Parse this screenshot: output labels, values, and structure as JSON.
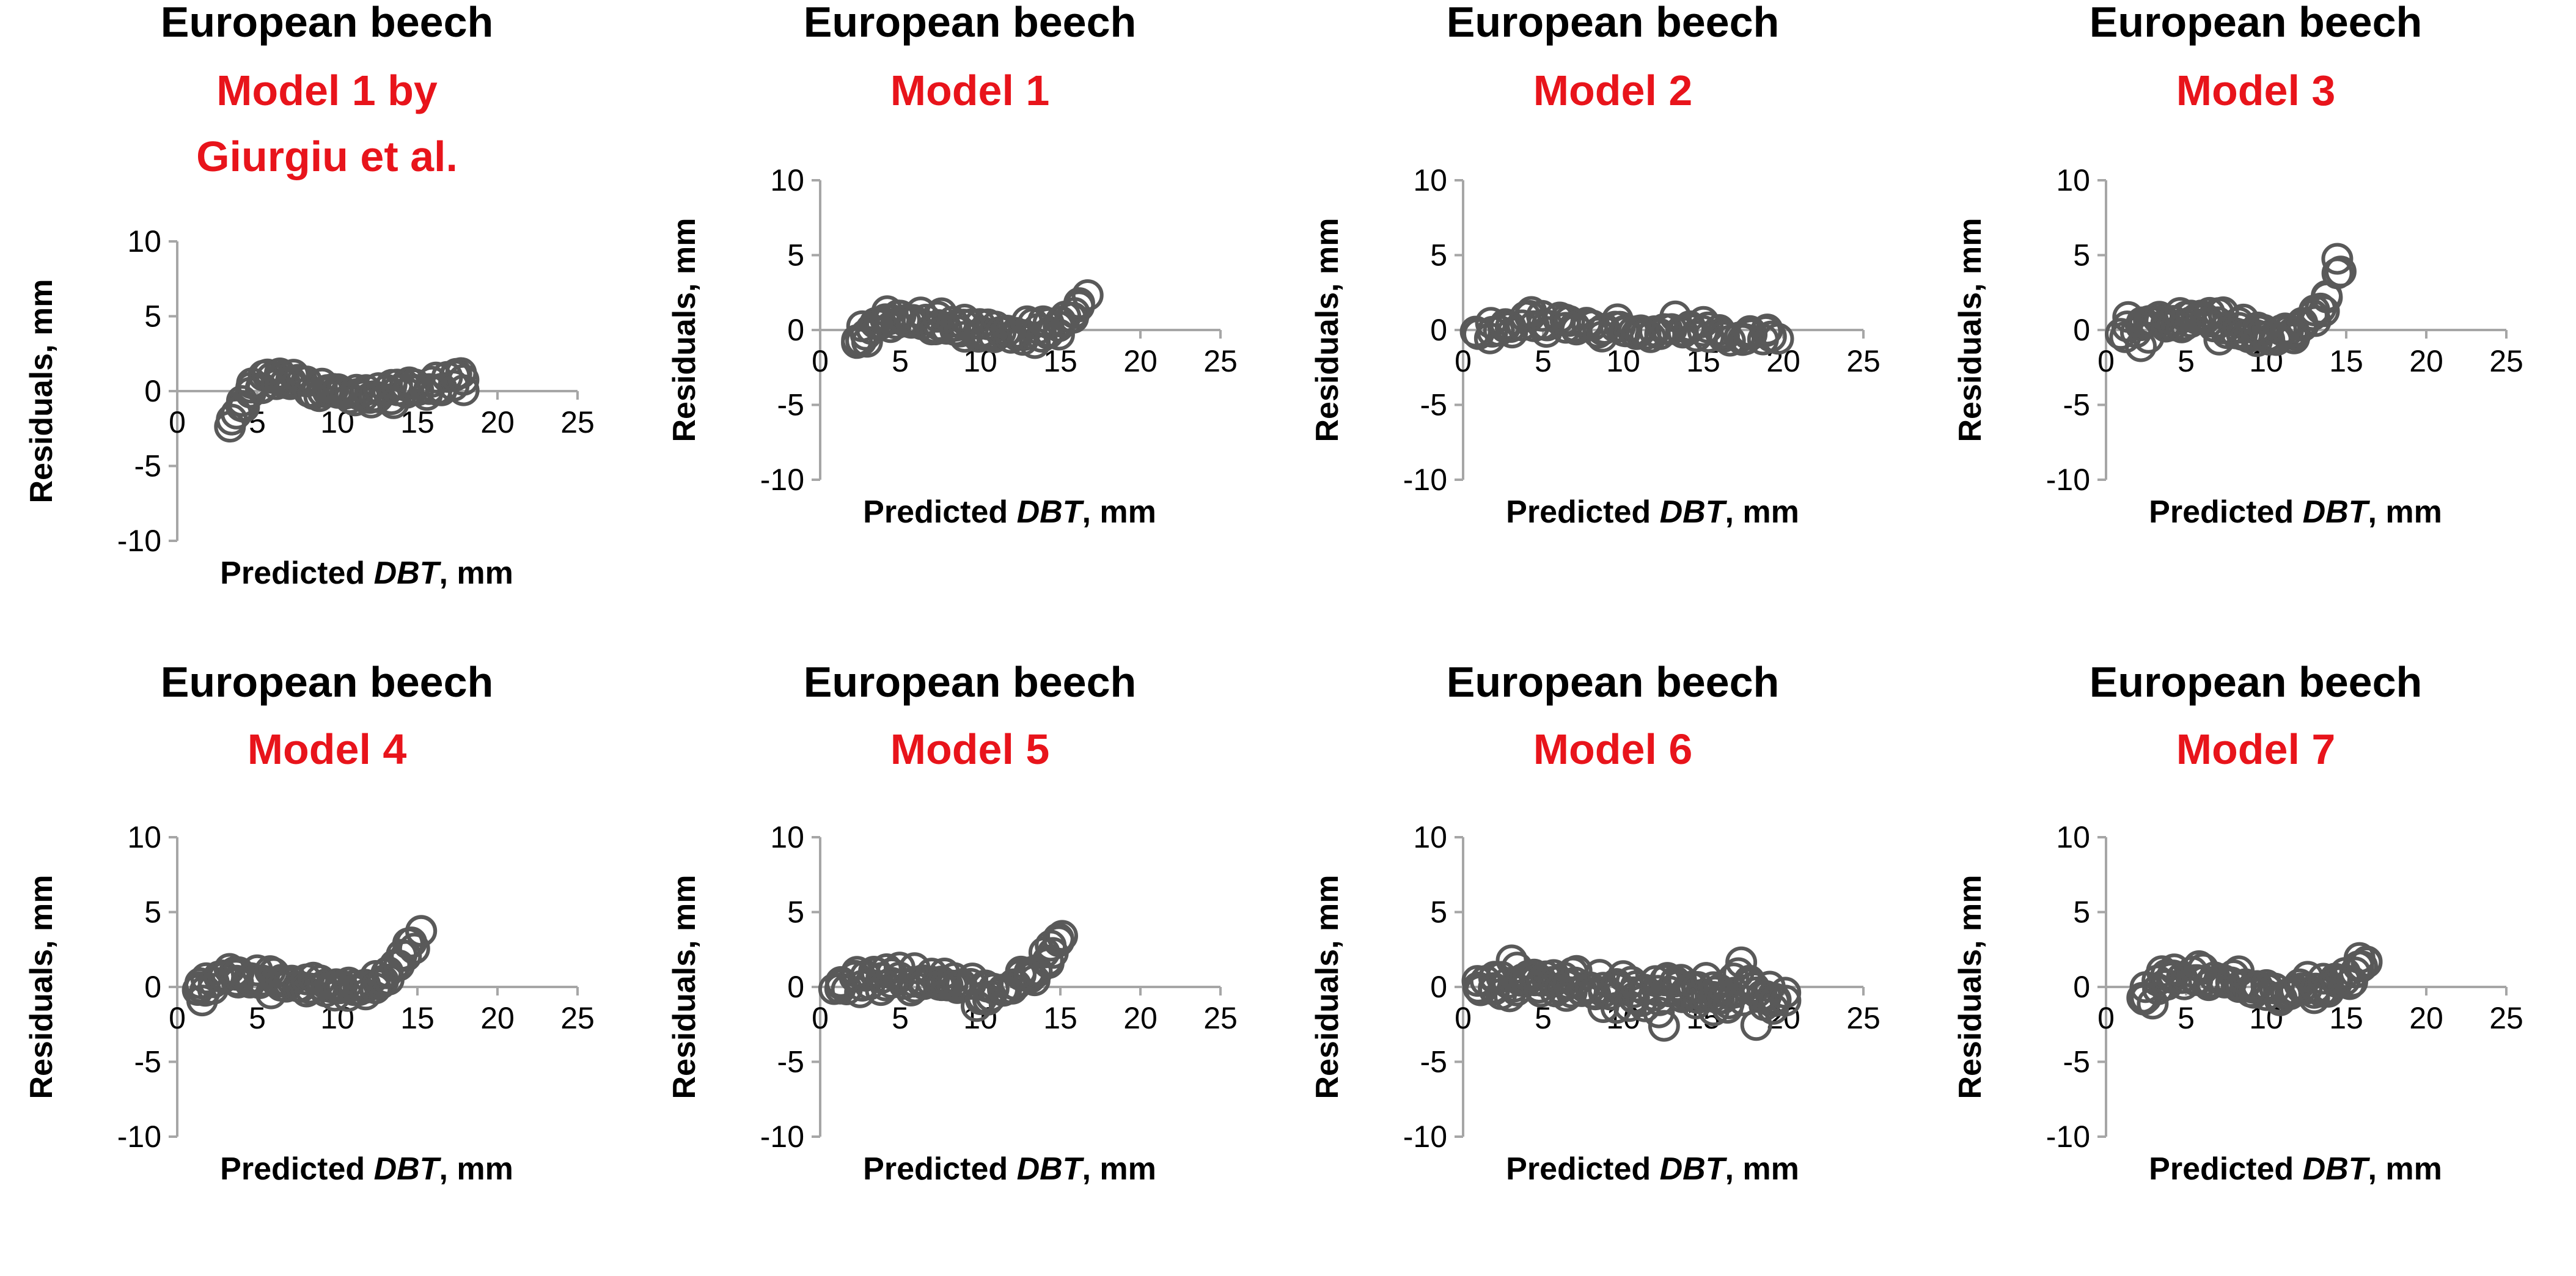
{
  "colors": {
    "species_title": "#000000",
    "model_title": "#e8141b",
    "marker_stroke": "#595959",
    "axis_line": "#a6a6a6",
    "text": "#000000"
  },
  "chart_data": [
    {
      "type": "scatter",
      "title": "European beech",
      "subtitle": [
        "Model 1 by",
        "Giurgiu et al."
      ],
      "xlabel_prefix": "Predicted ",
      "xlabel_italic": "DBT",
      "xlabel_suffix": ", mm",
      "ylabel": "Residuals, mm",
      "xlim": [
        0,
        25
      ],
      "ylim": [
        -10,
        10
      ],
      "xticks": [
        "0",
        "5",
        "10",
        "15",
        "20",
        "25"
      ],
      "yticks": [
        "10",
        "5",
        "0",
        "-5",
        "-10"
      ],
      "marker": "open-circle",
      "trend": [
        [
          3.2,
          -2.2
        ],
        [
          3.8,
          -1.2
        ],
        [
          4.5,
          0.0
        ],
        [
          5.5,
          0.8
        ],
        [
          6.5,
          1.0
        ],
        [
          8,
          0.4
        ],
        [
          10,
          0.0
        ],
        [
          12,
          -0.2
        ],
        [
          14,
          0.0
        ],
        [
          16,
          0.3
        ],
        [
          18,
          0.8
        ]
      ],
      "spread": 0.7,
      "n_points": 75
    },
    {
      "type": "scatter",
      "title": "European beech",
      "subtitle": [
        "Model 1"
      ],
      "xlabel_prefix": "Predicted ",
      "xlabel_italic": "DBT",
      "xlabel_suffix": ", mm",
      "ylabel": "Residuals, mm",
      "xlim": [
        0,
        25
      ],
      "ylim": [
        -10,
        10
      ],
      "xticks": [
        "0",
        "5",
        "10",
        "15",
        "20",
        "25"
      ],
      "yticks": [
        "10",
        "5",
        "0",
        "-5",
        "-10"
      ],
      "marker": "open-circle",
      "trend": [
        [
          2,
          -0.8
        ],
        [
          3,
          -0.2
        ],
        [
          4,
          0.6
        ],
        [
          5,
          0.9
        ],
        [
          6,
          0.8
        ],
        [
          7,
          0.5
        ],
        [
          9,
          0.0
        ],
        [
          11,
          -0.3
        ],
        [
          13,
          -0.2
        ],
        [
          15,
          0.4
        ],
        [
          16.5,
          1.8
        ]
      ],
      "spread": 0.8,
      "n_points": 75
    },
    {
      "type": "scatter",
      "title": "European beech",
      "subtitle": [
        "Model 2"
      ],
      "xlabel_prefix": "Predicted ",
      "xlabel_italic": "DBT",
      "xlabel_suffix": ", mm",
      "ylabel": "Residuals, mm",
      "xlim": [
        0,
        25
      ],
      "ylim": [
        -10,
        10
      ],
      "xticks": [
        "0",
        "5",
        "10",
        "15",
        "20",
        "25"
      ],
      "yticks": [
        "10",
        "5",
        "0",
        "-5",
        "-10"
      ],
      "marker": "open-circle",
      "trend": [
        [
          1,
          -0.2
        ],
        [
          2,
          0.0
        ],
        [
          3,
          0.3
        ],
        [
          4,
          0.6
        ],
        [
          6,
          0.6
        ],
        [
          8,
          0.2
        ],
        [
          10,
          0.0
        ],
        [
          12,
          0.0
        ],
        [
          14,
          0.0
        ],
        [
          16,
          -0.1
        ],
        [
          18,
          -0.3
        ],
        [
          19.5,
          -0.5
        ]
      ],
      "spread": 0.7,
      "n_points": 75
    },
    {
      "type": "scatter",
      "title": "European beech",
      "subtitle": [
        "Model 3"
      ],
      "xlabel_prefix": "Predicted ",
      "xlabel_italic": "DBT",
      "xlabel_suffix": ", mm",
      "ylabel": "Residuals, mm",
      "xlim": [
        0,
        25
      ],
      "ylim": [
        -10,
        10
      ],
      "xticks": [
        "0",
        "5",
        "10",
        "15",
        "20",
        "25"
      ],
      "yticks": [
        "10",
        "5",
        "0",
        "-5",
        "-10"
      ],
      "marker": "open-circle",
      "trend": [
        [
          1,
          -0.2
        ],
        [
          2,
          0.1
        ],
        [
          3,
          0.5
        ],
        [
          4,
          0.8
        ],
        [
          6,
          0.6
        ],
        [
          8,
          0.0
        ],
        [
          10,
          -0.4
        ],
        [
          12,
          -0.2
        ],
        [
          13,
          0.8
        ],
        [
          14,
          2.5
        ],
        [
          14.6,
          4.2
        ]
      ],
      "spread": 0.8,
      "n_points": 75
    },
    {
      "type": "scatter",
      "title": "European beech",
      "subtitle": [
        "Model 4"
      ],
      "xlabel_prefix": "Predicted ",
      "xlabel_italic": "DBT",
      "xlabel_suffix": ", mm",
      "ylabel": "Residuals, mm",
      "xlim": [
        0,
        25
      ],
      "ylim": [
        -10,
        10
      ],
      "xticks": [
        "0",
        "5",
        "10",
        "15",
        "20",
        "25"
      ],
      "yticks": [
        "10",
        "5",
        "0",
        "-5",
        "-10"
      ],
      "marker": "open-circle",
      "trend": [
        [
          1,
          -0.2
        ],
        [
          2,
          0.1
        ],
        [
          3,
          0.5
        ],
        [
          4,
          0.8
        ],
        [
          6,
          0.6
        ],
        [
          8,
          0.1
        ],
        [
          10,
          -0.3
        ],
        [
          12,
          -0.1
        ],
        [
          13,
          0.6
        ],
        [
          14,
          1.8
        ],
        [
          15.2,
          3.6
        ]
      ],
      "spread": 0.8,
      "n_points": 75
    },
    {
      "type": "scatter",
      "title": "European beech",
      "subtitle": [
        "Model 5"
      ],
      "xlabel_prefix": "Predicted ",
      "xlabel_italic": "DBT",
      "xlabel_suffix": ", mm",
      "ylabel": "Residuals, mm",
      "xlim": [
        0,
        25
      ],
      "ylim": [
        -10,
        10
      ],
      "xticks": [
        "0",
        "5",
        "10",
        "15",
        "20",
        "25"
      ],
      "yticks": [
        "10",
        "5",
        "0",
        "-5",
        "-10"
      ],
      "marker": "open-circle",
      "trend": [
        [
          1,
          -0.2
        ],
        [
          2,
          0.1
        ],
        [
          3,
          0.5
        ],
        [
          4,
          0.7
        ],
        [
          6,
          0.5
        ],
        [
          8,
          0.0
        ],
        [
          10,
          -0.4
        ],
        [
          12,
          -0.2
        ],
        [
          13,
          0.6
        ],
        [
          14,
          1.9
        ],
        [
          15.3,
          3.6
        ]
      ],
      "spread": 0.8,
      "n_points": 75
    },
    {
      "type": "scatter",
      "title": "European beech",
      "subtitle": [
        "Model 6"
      ],
      "xlabel_prefix": "Predicted ",
      "xlabel_italic": "DBT",
      "xlabel_suffix": ", mm",
      "ylabel": "Residuals, mm",
      "xlim": [
        0,
        25
      ],
      "ylim": [
        -10,
        10
      ],
      "xticks": [
        "0",
        "5",
        "10",
        "15",
        "20",
        "25"
      ],
      "yticks": [
        "10",
        "5",
        "0",
        "-5",
        "-10"
      ],
      "marker": "open-circle",
      "trend": [
        [
          1,
          0.0
        ],
        [
          3,
          0.4
        ],
        [
          5,
          0.5
        ],
        [
          7,
          0.2
        ],
        [
          9,
          -0.3
        ],
        [
          10,
          -0.8
        ],
        [
          12,
          -0.6
        ],
        [
          14,
          -0.4
        ],
        [
          16,
          -0.5
        ],
        [
          18,
          -0.6
        ],
        [
          20,
          -0.8
        ]
      ],
      "spread": 1.6,
      "n_points": 120
    },
    {
      "type": "scatter",
      "title": "European beech",
      "subtitle": [
        "Model 7"
      ],
      "xlabel_prefix": "Predicted ",
      "xlabel_italic": "DBT",
      "xlabel_suffix": ", mm",
      "ylabel": "Residuals, mm",
      "xlim": [
        0,
        25
      ],
      "ylim": [
        -10,
        10
      ],
      "xticks": [
        "0",
        "5",
        "10",
        "15",
        "20",
        "25"
      ],
      "yticks": [
        "10",
        "5",
        "0",
        "-5",
        "-10"
      ],
      "marker": "open-circle",
      "trend": [
        [
          2,
          -0.8
        ],
        [
          3,
          -0.2
        ],
        [
          4,
          0.6
        ],
        [
          5,
          0.9
        ],
        [
          6,
          0.8
        ],
        [
          7,
          0.5
        ],
        [
          9,
          0.0
        ],
        [
          11,
          -0.3
        ],
        [
          13,
          -0.2
        ],
        [
          15,
          0.5
        ],
        [
          16.5,
          2.0
        ]
      ],
      "spread": 0.8,
      "n_points": 75
    }
  ]
}
